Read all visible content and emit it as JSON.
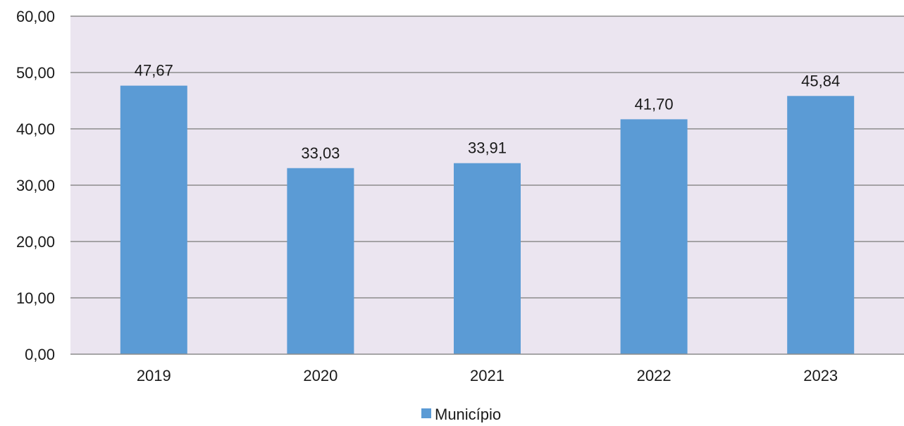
{
  "chart_data": {
    "type": "bar",
    "title": "",
    "xlabel": "",
    "ylabel": "",
    "categories": [
      "2019",
      "2020",
      "2021",
      "2022",
      "2023"
    ],
    "series": [
      {
        "name": "Município",
        "values": [
          47.67,
          33.03,
          33.91,
          41.7,
          45.84
        ],
        "value_labels": [
          "47,67",
          "33,03",
          "33,91",
          "41,70",
          "45,84"
        ],
        "color": "#5b9bd5"
      }
    ],
    "ylim": [
      0,
      60
    ],
    "y_ticks": [
      0,
      10,
      20,
      30,
      40,
      50,
      60
    ],
    "y_tick_labels": [
      "0,00",
      "10,00",
      "20,00",
      "30,00",
      "40,00",
      "50,00",
      "60,00"
    ],
    "grid": true,
    "legend": "bottom-center",
    "plot_background": "#ebe5f0",
    "gridline_color": "#8c8c8c"
  }
}
